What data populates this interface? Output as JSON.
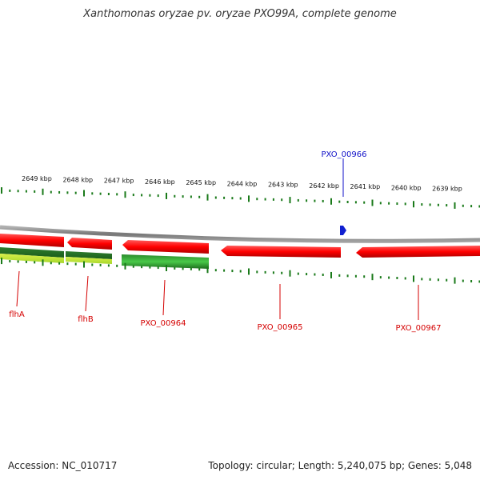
{
  "title": "Xanthomonas oryzae pv. oryzae PXO99A, complete genome",
  "accession": "Accession: NC_010717",
  "summary": "Topology: circular; Length: 5,240,075 bp; Genes: 5,048",
  "ticks": [
    "2649 kbp",
    "2648 kbp",
    "2647 kbp",
    "2646 kbp",
    "2645 kbp",
    "2644 kbp",
    "2643 kbp",
    "2642 kbp",
    "2641 kbp",
    "2640 kbp",
    "2639 kbp"
  ],
  "genes": [
    {
      "name": "flhA",
      "color": "#d40000"
    },
    {
      "name": "flhB",
      "color": "#d40000"
    },
    {
      "name": "PXO_00964",
      "color": "#d40000"
    },
    {
      "name": "PXO_00965",
      "color": "#d40000"
    },
    {
      "name": "PXO_00967",
      "color": "#d40000"
    }
  ],
  "highlight": {
    "name": "PXO_00966",
    "color": "#1010c8"
  },
  "colors": {
    "gene_red": "#e00000",
    "gene_green": "#2a9d2a",
    "tick_green": "#1a7a1a",
    "backbone": "#888888"
  }
}
